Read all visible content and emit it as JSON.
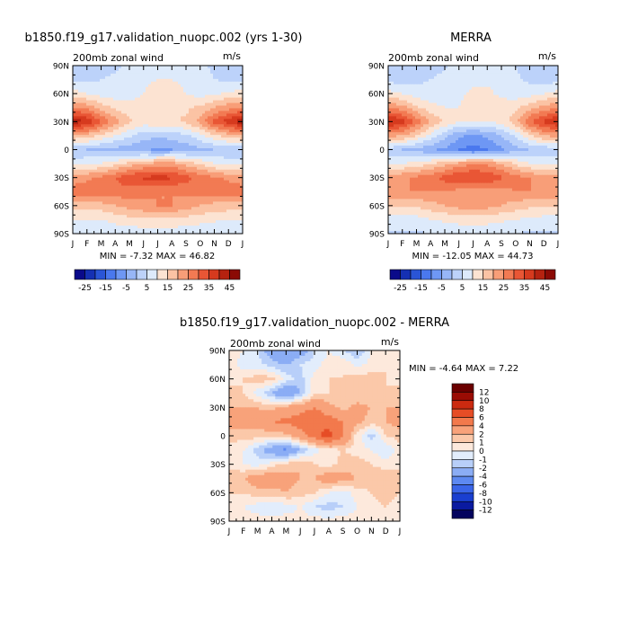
{
  "chart_data": [
    {
      "type": "heatmap",
      "title": "b1850.f19_g17.validation_nuopc.002 (yrs 1-30)",
      "subtitle": "200mb zonal wind",
      "units": "m/s",
      "xlabel": "",
      "ylabel": "",
      "x_ticks": [
        "J",
        "F",
        "M",
        "A",
        "M",
        "J",
        "J",
        "A",
        "S",
        "O",
        "N",
        "D",
        "J"
      ],
      "y_ticks": [
        "90N",
        "60N",
        "30N",
        "0",
        "30S",
        "60S",
        "90S"
      ],
      "stats": "MIN =   -7.32 MAX =   46.82",
      "colorbar_labels": [
        "-25",
        "-15",
        "-5",
        "5",
        "15",
        "25",
        "35",
        "45"
      ],
      "levels": [
        -30,
        -25,
        -20,
        -15,
        -10,
        -5,
        0,
        5,
        10,
        15,
        20,
        25,
        30,
        35,
        40,
        45,
        50
      ],
      "field": {
        "months": [
          "Jan",
          "Feb",
          "Mar",
          "Apr",
          "May",
          "Jun",
          "Jul",
          "Aug",
          "Sep",
          "Oct",
          "Nov",
          "Dec",
          "Jan"
        ],
        "latitudes": [
          90,
          75,
          60,
          45,
          30,
          15,
          0,
          -15,
          -30,
          -45,
          -60,
          -75,
          -90
        ],
        "values": [
          [
            2,
            2,
            3,
            4,
            6,
            8,
            9,
            9,
            8,
            6,
            4,
            3,
            2
          ],
          [
            4,
            4,
            5,
            6,
            7,
            9,
            10,
            10,
            9,
            7,
            5,
            4,
            4
          ],
          [
            12,
            10,
            8,
            7,
            8,
            10,
            12,
            12,
            10,
            8,
            9,
            11,
            12
          ],
          [
            25,
            23,
            18,
            14,
            12,
            12,
            13,
            14,
            14,
            16,
            20,
            23,
            25
          ],
          [
            44,
            40,
            30,
            22,
            16,
            13,
            14,
            14,
            16,
            22,
            32,
            38,
            44
          ],
          [
            20,
            18,
            14,
            10,
            6,
            2,
            1,
            2,
            4,
            8,
            14,
            18,
            20
          ],
          [
            0,
            0,
            -1,
            -2,
            -3,
            -4,
            -6,
            -5,
            -3,
            -1,
            0,
            0,
            0
          ],
          [
            8,
            9,
            10,
            13,
            17,
            20,
            22,
            22,
            18,
            14,
            10,
            8,
            8
          ],
          [
            22,
            24,
            26,
            30,
            34,
            36,
            37,
            36,
            32,
            28,
            26,
            24,
            22
          ],
          [
            28,
            28,
            28,
            28,
            28,
            26,
            25,
            25,
            26,
            28,
            28,
            28,
            28
          ],
          [
            18,
            18,
            18,
            20,
            22,
            24,
            25,
            25,
            23,
            20,
            18,
            18,
            18
          ],
          [
            10,
            10,
            10,
            12,
            13,
            14,
            14,
            14,
            13,
            12,
            11,
            10,
            10
          ],
          [
            5,
            5,
            5,
            6,
            6,
            7,
            7,
            7,
            6,
            6,
            5,
            5,
            5
          ]
        ]
      }
    },
    {
      "type": "heatmap",
      "title": "MERRA",
      "subtitle": "200mb zonal wind",
      "units": "m/s",
      "xlabel": "",
      "ylabel": "",
      "x_ticks": [
        "J",
        "F",
        "M",
        "A",
        "M",
        "J",
        "J",
        "A",
        "S",
        "O",
        "N",
        "D",
        "J"
      ],
      "y_ticks": [
        "90N",
        "60N",
        "30N",
        "0",
        "30S",
        "60S",
        "90S"
      ],
      "stats": "MIN =  -12.05 MAX =   44.73",
      "colorbar_labels": [
        "-25",
        "-15",
        "-5",
        "5",
        "15",
        "25",
        "35",
        "45"
      ],
      "levels": [
        -30,
        -25,
        -20,
        -15,
        -10,
        -5,
        0,
        5,
        10,
        15,
        20,
        25,
        30,
        35,
        40,
        45,
        50
      ],
      "field": {
        "months": [
          "Jan",
          "Feb",
          "Mar",
          "Apr",
          "May",
          "Jun",
          "Jul",
          "Aug",
          "Sep",
          "Oct",
          "Nov",
          "Dec",
          "Jan"
        ],
        "latitudes": [
          90,
          75,
          60,
          45,
          30,
          15,
          0,
          -15,
          -30,
          -45,
          -60,
          -75,
          -90
        ],
        "values": [
          [
            0,
            0,
            1,
            2,
            4,
            7,
            8,
            8,
            7,
            5,
            2,
            1,
            0
          ],
          [
            3,
            3,
            4,
            5,
            7,
            8,
            9,
            9,
            8,
            6,
            4,
            3,
            3
          ],
          [
            12,
            10,
            7,
            6,
            7,
            9,
            11,
            11,
            9,
            7,
            8,
            10,
            12
          ],
          [
            24,
            22,
            16,
            12,
            10,
            10,
            12,
            12,
            12,
            14,
            18,
            22,
            24
          ],
          [
            42,
            38,
            28,
            20,
            14,
            10,
            10,
            10,
            12,
            18,
            30,
            36,
            42
          ],
          [
            22,
            20,
            15,
            8,
            2,
            -4,
            -6,
            -4,
            0,
            6,
            14,
            20,
            22
          ],
          [
            2,
            0,
            -2,
            -4,
            -6,
            -10,
            -12,
            -10,
            -6,
            -2,
            0,
            1,
            2
          ],
          [
            8,
            10,
            12,
            14,
            18,
            22,
            24,
            24,
            20,
            14,
            10,
            8,
            8
          ],
          [
            22,
            24,
            26,
            28,
            32,
            35,
            36,
            35,
            31,
            27,
            25,
            23,
            22
          ],
          [
            25,
            25,
            25,
            25,
            25,
            23,
            22,
            22,
            23,
            25,
            25,
            25,
            25
          ],
          [
            16,
            16,
            16,
            18,
            20,
            22,
            22,
            22,
            20,
            18,
            16,
            16,
            16
          ],
          [
            8,
            8,
            8,
            10,
            11,
            12,
            12,
            12,
            11,
            10,
            9,
            8,
            8
          ],
          [
            4,
            4,
            4,
            5,
            5,
            6,
            6,
            6,
            5,
            5,
            4,
            4,
            4
          ]
        ]
      }
    },
    {
      "type": "heatmap",
      "title": "b1850.f19_g17.validation_nuopc.002 - MERRA",
      "subtitle": "200mb zonal wind",
      "units": "m/s",
      "xlabel": "",
      "ylabel": "",
      "x_ticks": [
        "J",
        "F",
        "M",
        "A",
        "M",
        "J",
        "J",
        "A",
        "S",
        "O",
        "N",
        "D",
        "J"
      ],
      "y_ticks": [
        "90N",
        "60N",
        "30N",
        "0",
        "30S",
        "60S",
        "90S"
      ],
      "stats": "MIN =   -4.64 MAX =    7.22",
      "colorbar_labels": [
        "12",
        "10",
        "8",
        "6",
        "4",
        "2",
        "1",
        "0",
        "-1",
        "-2",
        "-4",
        "-6",
        "-8",
        "-10",
        "-12"
      ],
      "levels": [
        -14,
        -12,
        -10,
        -8,
        -6,
        -4,
        -2,
        -1,
        0,
        1,
        2,
        4,
        6,
        8,
        10,
        12,
        14
      ],
      "field": {
        "months": [
          "Jan",
          "Feb",
          "Mar",
          "Apr",
          "May",
          "Jun",
          "Jul",
          "Aug",
          "Sep",
          "Oct",
          "Nov",
          "Dec",
          "Jan"
        ],
        "latitudes": [
          90,
          75,
          60,
          45,
          30,
          15,
          0,
          -15,
          -30,
          -45,
          -60,
          -75,
          -90
        ],
        "values": [
          [
            0.5,
            0,
            -1,
            -3,
            -4,
            -3,
            -1,
            0,
            -1,
            -2,
            0,
            0.5,
            0.5
          ],
          [
            0.5,
            -0.5,
            -0.5,
            -1.5,
            -2,
            -1,
            -0.5,
            0.5,
            1,
            -0.5,
            0.5,
            1,
            0.5
          ],
          [
            0.5,
            1,
            1.5,
            1.5,
            -0.5,
            -1.5,
            0.5,
            1,
            1,
            1.5,
            1.5,
            1,
            0.5
          ],
          [
            1.5,
            1,
            -0.5,
            -2,
            -4,
            -2,
            0.5,
            1,
            1.5,
            1,
            1,
            1,
            1.5
          ],
          [
            2,
            2,
            2,
            1.5,
            2.5,
            3,
            4,
            2.5,
            1.5,
            2.5,
            2,
            2,
            2
          ],
          [
            2.5,
            2.5,
            2.5,
            4,
            4.5,
            5,
            6,
            5,
            4,
            2.5,
            1.5,
            2,
            2.5
          ],
          [
            1.5,
            1.5,
            1.5,
            1,
            1.5,
            3,
            5,
            7,
            4,
            0.5,
            -1.5,
            1,
            1.5
          ],
          [
            0.5,
            0,
            -1.5,
            -3,
            -4.5,
            -2,
            -0.5,
            0.5,
            1,
            0.5,
            0,
            -1,
            0.5
          ],
          [
            0.5,
            0,
            -0.5,
            0.5,
            1.5,
            2,
            1,
            0.5,
            1.5,
            1.5,
            1,
            0.5,
            0.5
          ],
          [
            2,
            2,
            3,
            3,
            2.5,
            2,
            2,
            3,
            2.5,
            2,
            1.5,
            2,
            2
          ],
          [
            1,
            1,
            1.5,
            1.5,
            2,
            1.5,
            1,
            0,
            -0.5,
            0.5,
            1,
            1.5,
            1
          ],
          [
            0.5,
            0,
            -0.5,
            -1,
            -0.5,
            0,
            -1,
            -1.5,
            -1,
            0,
            0.5,
            1,
            0.5
          ],
          [
            0.5,
            0.5,
            0.5,
            0.5,
            0.5,
            0.5,
            0.5,
            0.5,
            0.5,
            0.5,
            0.5,
            0.5,
            0.5
          ]
        ]
      }
    }
  ],
  "colors": {
    "full_scale": [
      "#0a0a8a",
      "#1530b3",
      "#2a55d6",
      "#4a78ee",
      "#6e97f4",
      "#97b6f7",
      "#bcd2fa",
      "#ddeafb",
      "#fce3d2",
      "#fbc3a4",
      "#f89e78",
      "#f27a53",
      "#e95635",
      "#d63a1e",
      "#b52210",
      "#8b0a05"
    ],
    "diff_scale": [
      "#03035e",
      "#0a1aa0",
      "#1a3fd0",
      "#3a65e8",
      "#5d89f1",
      "#8badf5",
      "#b8cff9",
      "#e2edfc",
      "#fde9dc",
      "#fbc8a9",
      "#f8a27a",
      "#f2794c",
      "#e64d26",
      "#cb2a10",
      "#9a0c04",
      "#6b0000"
    ]
  }
}
